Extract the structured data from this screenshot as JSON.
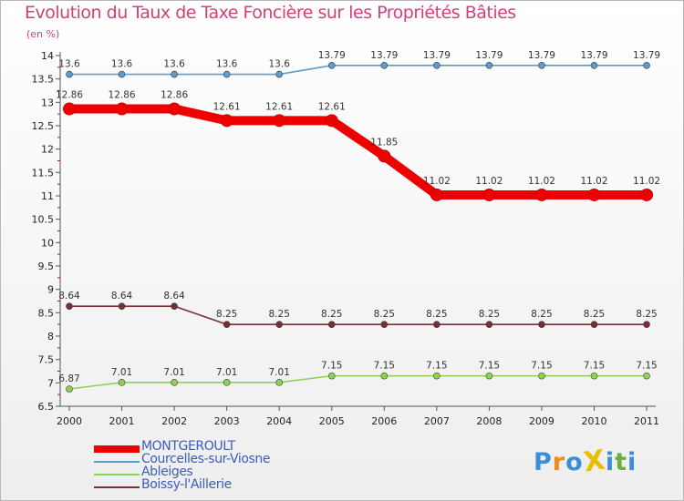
{
  "chart_data": {
    "type": "line",
    "title": "Evolution du Taux de Taxe Foncière sur les Propriétés Bâties",
    "ylabel": "(en %)",
    "xlabel": "",
    "ylim": [
      6.5,
      14
    ],
    "yticks": [
      6.5,
      7,
      7.5,
      8,
      8.5,
      9,
      9.5,
      10,
      10.5,
      11,
      11.5,
      12,
      12.5,
      13,
      13.5,
      14
    ],
    "ytick_labels": [
      "6.5",
      "7",
      "7.5",
      "8",
      "8.5",
      "9",
      "9.5",
      "10",
      "10.5",
      "11",
      "11.5",
      "12",
      "12.5",
      "13",
      "13.5",
      "14"
    ],
    "categories": [
      "2000",
      "2001",
      "2002",
      "2003",
      "2004",
      "2005",
      "2006",
      "2007",
      "2008",
      "2009",
      "2010",
      "2011"
    ],
    "grid": false,
    "legend_position": "bottom-left",
    "series": [
      {
        "name": "MONTGEROULT",
        "color": "#ee0000",
        "emphasis": true,
        "values": [
          12.86,
          12.86,
          12.86,
          12.61,
          12.61,
          12.61,
          11.85,
          11.02,
          11.02,
          11.02,
          11.02,
          11.02
        ],
        "labels": [
          "12.86",
          "12.86",
          "12.86",
          "12.61",
          "12.61",
          "12.61",
          "11.85",
          "11.02",
          "11.02",
          "11.02",
          "11.02",
          "11.02"
        ]
      },
      {
        "name": "Courcelles-sur-Viosne",
        "color": "#5d9ccc",
        "emphasis": false,
        "values": [
          13.6,
          13.6,
          13.6,
          13.6,
          13.6,
          13.79,
          13.79,
          13.79,
          13.79,
          13.79,
          13.79,
          13.79
        ],
        "labels": [
          "13.6",
          "13.6",
          "13.6",
          "13.6",
          "13.6",
          "13.79",
          "13.79",
          "13.79",
          "13.79",
          "13.79",
          "13.79",
          "13.79"
        ]
      },
      {
        "name": "Ableiges",
        "color": "#8fd157",
        "emphasis": false,
        "values": [
          6.87,
          7.01,
          7.01,
          7.01,
          7.01,
          7.15,
          7.15,
          7.15,
          7.15,
          7.15,
          7.15,
          7.15
        ],
        "labels": [
          "6.87",
          "7.01",
          "7.01",
          "7.01",
          "7.01",
          "7.15",
          "7.15",
          "7.15",
          "7.15",
          "7.15",
          "7.15",
          "7.15"
        ]
      },
      {
        "name": "Boissy-l'Aillerie",
        "color": "#7a2d34",
        "emphasis": false,
        "values": [
          8.64,
          8.64,
          8.64,
          8.25,
          8.25,
          8.25,
          8.25,
          8.25,
          8.25,
          8.25,
          8.25,
          8.25
        ],
        "labels": [
          "8.64",
          "8.64",
          "8.64",
          "8.25",
          "8.25",
          "8.25",
          "8.25",
          "8.25",
          "8.25",
          "8.25",
          "8.25",
          "8.25"
        ]
      }
    ]
  },
  "logo": {
    "text": "ProXiti",
    "letters": [
      "P",
      "r",
      "o",
      "X",
      "i",
      "t",
      "i"
    ],
    "letter_colors": [
      "#3a8fd8",
      "#f08a1c",
      "#3a8fd8",
      "#e8c000",
      "#3a8fd8",
      "#6aaf3a",
      "#3a8fd8"
    ]
  }
}
